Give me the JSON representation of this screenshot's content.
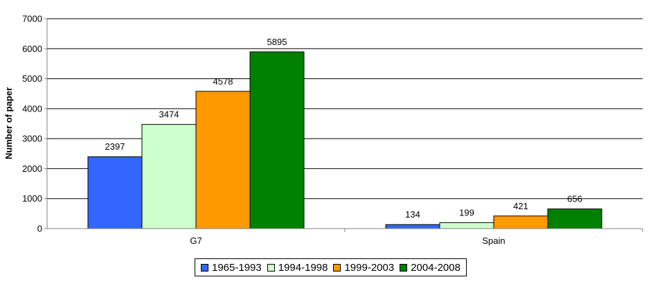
{
  "chart_data": {
    "type": "bar",
    "title": "",
    "xlabel": "",
    "ylabel": "Number of paper",
    "ylim": [
      0,
      7000
    ],
    "yticks": [
      0,
      1000,
      2000,
      3000,
      4000,
      5000,
      6000,
      7000
    ],
    "grid": true,
    "legend_position": "bottom",
    "categories": [
      "G7",
      "Spain"
    ],
    "series": [
      {
        "name": "1965-1993",
        "color": "#3366ff",
        "values": [
          2397,
          134
        ]
      },
      {
        "name": "1994-1998",
        "color": "#ccffcc",
        "values": [
          3474,
          199
        ]
      },
      {
        "name": "1999-2003",
        "color": "#ff9900",
        "values": [
          4578,
          421
        ]
      },
      {
        "name": "2004-2008",
        "color": "#008000",
        "values": [
          5895,
          656
        ]
      }
    ]
  }
}
